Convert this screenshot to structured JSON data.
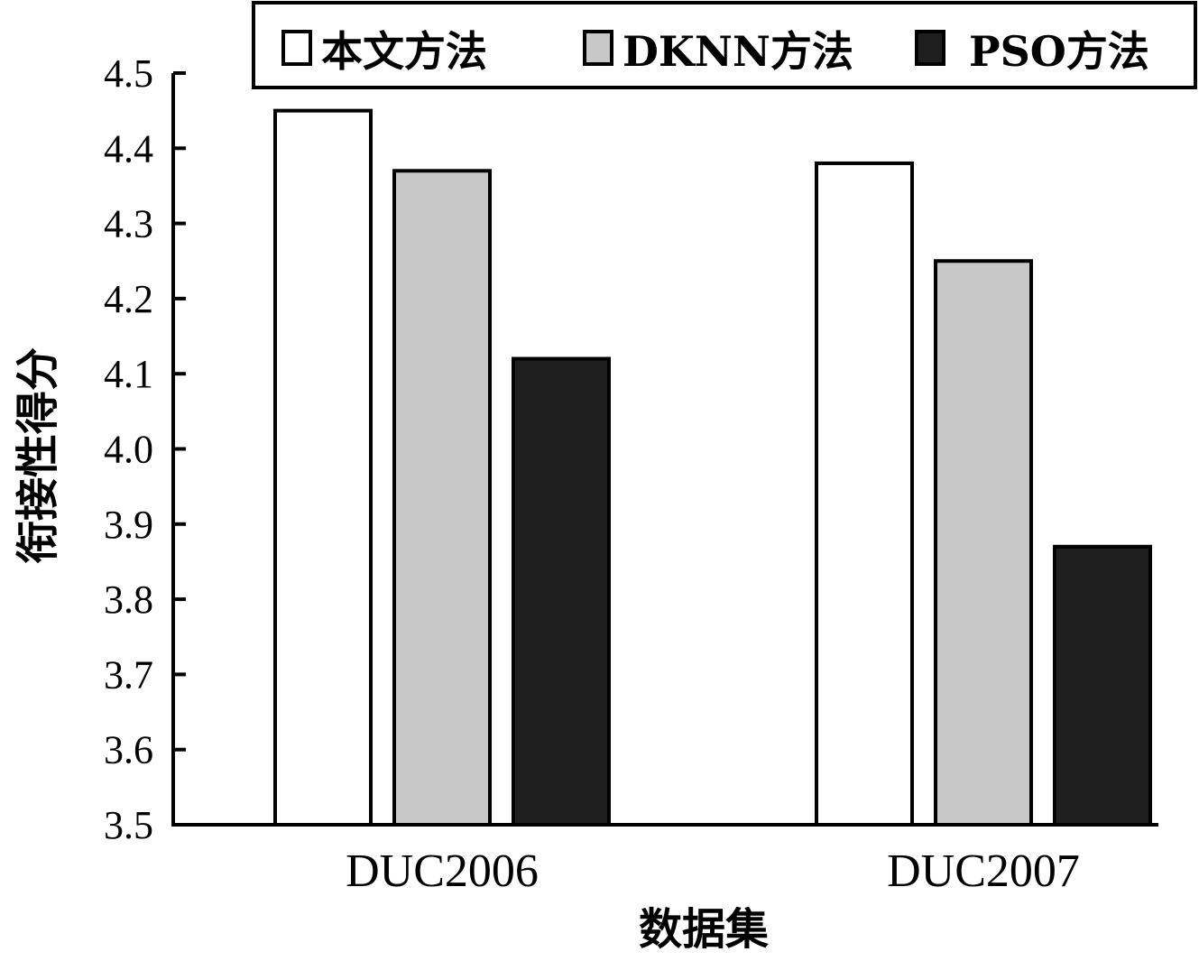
{
  "chart_data": {
    "type": "bar",
    "title": "",
    "xlabel": "数据集",
    "ylabel": "衔接性得分",
    "ylim": [
      3.5,
      4.5
    ],
    "yticks": [
      "3.5",
      "3.6",
      "3.7",
      "3.8",
      "3.9",
      "4.0",
      "4.1",
      "4.2",
      "4.3",
      "4.4",
      "4.5"
    ],
    "categories": [
      "DUC2006",
      "DUC2007"
    ],
    "series": [
      {
        "name": "本文方法",
        "values": [
          4.45,
          4.38
        ],
        "color": "#ffffff"
      },
      {
        "name": "DKNN方法",
        "values": [
          4.37,
          4.25
        ],
        "color": "#c8c8c8"
      },
      {
        "name": "PSO方法",
        "values": [
          4.12,
          3.87
        ],
        "color": "#1e1e1e"
      }
    ],
    "legend_position": "top-right",
    "grid": false
  }
}
